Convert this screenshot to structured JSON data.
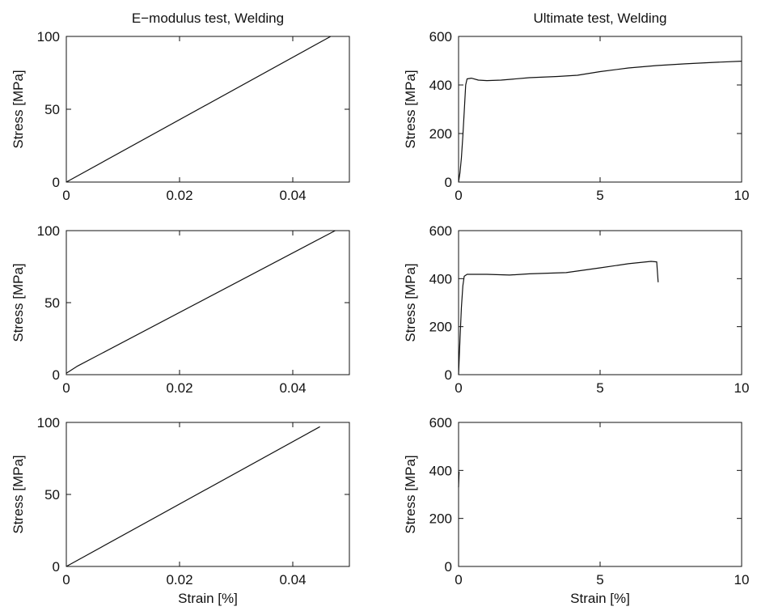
{
  "chart_data": [
    {
      "type": "line",
      "title": "E−modulus test, Welding",
      "xlabel": "",
      "ylabel": "Stress [MPa]",
      "xlim": [
        0,
        0.05
      ],
      "ylim": [
        0,
        100
      ],
      "xticks": [
        0,
        0.02,
        0.04
      ],
      "xtick_labels": [
        "0",
        "0.02",
        "0.04"
      ],
      "yticks": [
        0,
        50,
        100
      ],
      "ytick_labels": [
        "0",
        "50",
        "100"
      ],
      "grid": false,
      "series": [
        {
          "x": [
            0,
            0.0467
          ],
          "y": [
            0,
            100
          ]
        }
      ]
    },
    {
      "type": "line",
      "title": "Ultimate test, Welding",
      "xlabel": "",
      "ylabel": "Stress [MPa]",
      "xlim": [
        0,
        10
      ],
      "ylim": [
        0,
        600
      ],
      "xticks": [
        0,
        5,
        10
      ],
      "xtick_labels": [
        "0",
        "5",
        "10"
      ],
      "yticks": [
        0,
        200,
        400,
        600
      ],
      "ytick_labels": [
        "0",
        "200",
        "400",
        "600"
      ],
      "grid": false,
      "series": [
        {
          "x": [
            0,
            0.05,
            0.1,
            0.15,
            0.2,
            0.25,
            0.3,
            0.45,
            0.7,
            1.0,
            1.5,
            2.5,
            3.5,
            4.2,
            5.0,
            6.0,
            7.0,
            8.0,
            9.0,
            10.0
          ],
          "y": [
            0,
            40,
            100,
            190,
            290,
            400,
            425,
            428,
            420,
            418,
            420,
            430,
            435,
            440,
            455,
            470,
            480,
            487,
            493,
            498
          ]
        }
      ]
    },
    {
      "type": "line",
      "title": "",
      "xlabel": "",
      "ylabel": "Stress [MPa]",
      "xlim": [
        0,
        0.05
      ],
      "ylim": [
        0,
        100
      ],
      "xticks": [
        0,
        0.02,
        0.04
      ],
      "xtick_labels": [
        "0",
        "0.02",
        "0.04"
      ],
      "yticks": [
        0,
        50,
        100
      ],
      "ytick_labels": [
        "0",
        "50",
        "100"
      ],
      "grid": false,
      "series": [
        {
          "x": [
            0,
            0.002,
            0.0475
          ],
          "y": [
            1,
            6,
            100
          ]
        }
      ]
    },
    {
      "type": "line",
      "title": "",
      "xlabel": "",
      "ylabel": "Stress [MPa]",
      "xlim": [
        0,
        10
      ],
      "ylim": [
        0,
        600
      ],
      "xticks": [
        0,
        5,
        10
      ],
      "xtick_labels": [
        "0",
        "5",
        "10"
      ],
      "yticks": [
        0,
        200,
        400,
        600
      ],
      "ytick_labels": [
        "0",
        "200",
        "400",
        "600"
      ],
      "grid": false,
      "series": [
        {
          "x": [
            0,
            0.05,
            0.1,
            0.15,
            0.2,
            0.3,
            0.5,
            1.0,
            1.8,
            2.5,
            3.8,
            5.0,
            6.0,
            6.8,
            7.0,
            7.05
          ],
          "y": [
            0,
            150,
            280,
            370,
            410,
            418,
            418,
            418,
            415,
            420,
            425,
            445,
            462,
            472,
            470,
            385
          ]
        }
      ]
    },
    {
      "type": "line",
      "title": "",
      "xlabel": "Strain [%]",
      "ylabel": "Stress [MPa]",
      "xlim": [
        0,
        0.05
      ],
      "ylim": [
        0,
        100
      ],
      "xticks": [
        0,
        0.02,
        0.04
      ],
      "xtick_labels": [
        "0",
        "0.02",
        "0.04"
      ],
      "yticks": [
        0,
        50,
        100
      ],
      "ytick_labels": [
        "0",
        "50",
        "100"
      ],
      "grid": false,
      "series": [
        {
          "x": [
            0,
            0.0448
          ],
          "y": [
            0,
            97
          ]
        }
      ]
    },
    {
      "type": "line",
      "title": "",
      "xlabel": "Strain [%]",
      "ylabel": "Stress [MPa]",
      "xlim": [
        0,
        10
      ],
      "ylim": [
        0,
        600
      ],
      "xticks": [
        0,
        5,
        10
      ],
      "xtick_labels": [
        "0",
        "5",
        "10"
      ],
      "yticks": [
        0,
        200,
        400,
        600
      ],
      "ytick_labels": [
        "0",
        "200",
        "400",
        "600"
      ],
      "grid": false,
      "series": [
        {
          "x": [
            0,
            0.01,
            0.02
          ],
          "y": [
            330,
            370,
            395
          ]
        }
      ]
    }
  ]
}
